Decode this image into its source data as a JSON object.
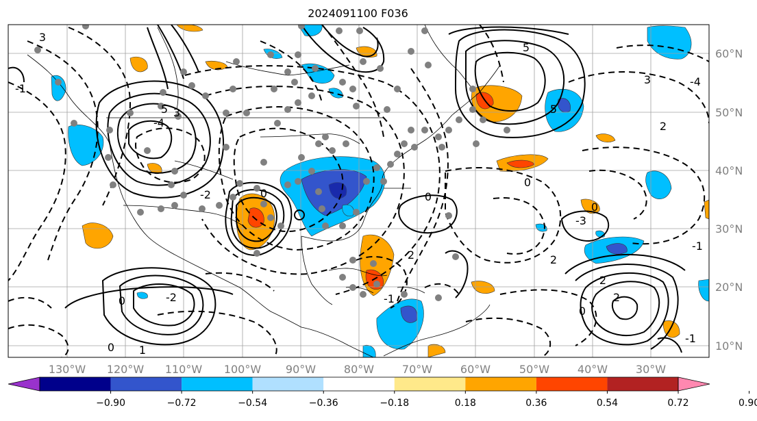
{
  "title": "2024091100 F036",
  "lat_labels": [
    "60°N",
    "50°N",
    "40°N",
    "30°N",
    "20°N",
    "10°N"
  ],
  "lon_labels": [
    "130°W",
    "120°W",
    "110°W",
    "100°W",
    "90°W",
    "80°W",
    "70°W",
    "60°W",
    "50°W",
    "40°W",
    "30°W"
  ],
  "contour_labels": [
    "3",
    "5",
    "5",
    "3",
    "-4",
    "0",
    "-2",
    "0",
    "5",
    "0",
    "-1",
    "0",
    "-2",
    "2",
    "3",
    "-4",
    "2",
    "0",
    "-3",
    "2",
    "0",
    "2",
    "-1",
    "0",
    "1",
    "-1",
    "2",
    "-1"
  ],
  "colorbar": {
    "ticks": [
      "−0.90",
      "−0.72",
      "−0.54",
      "−0.36",
      "−0.18",
      "0.18",
      "0.36",
      "0.54",
      "0.72",
      "0.90"
    ],
    "colors": [
      "#9932cc",
      "#00008b",
      "#3355cc",
      "#00bfff",
      "#b0e0ff",
      "#ffffff",
      "#ffe98a",
      "#ffa500",
      "#ff4500",
      "#b22222",
      "#ff88b0"
    ]
  }
}
